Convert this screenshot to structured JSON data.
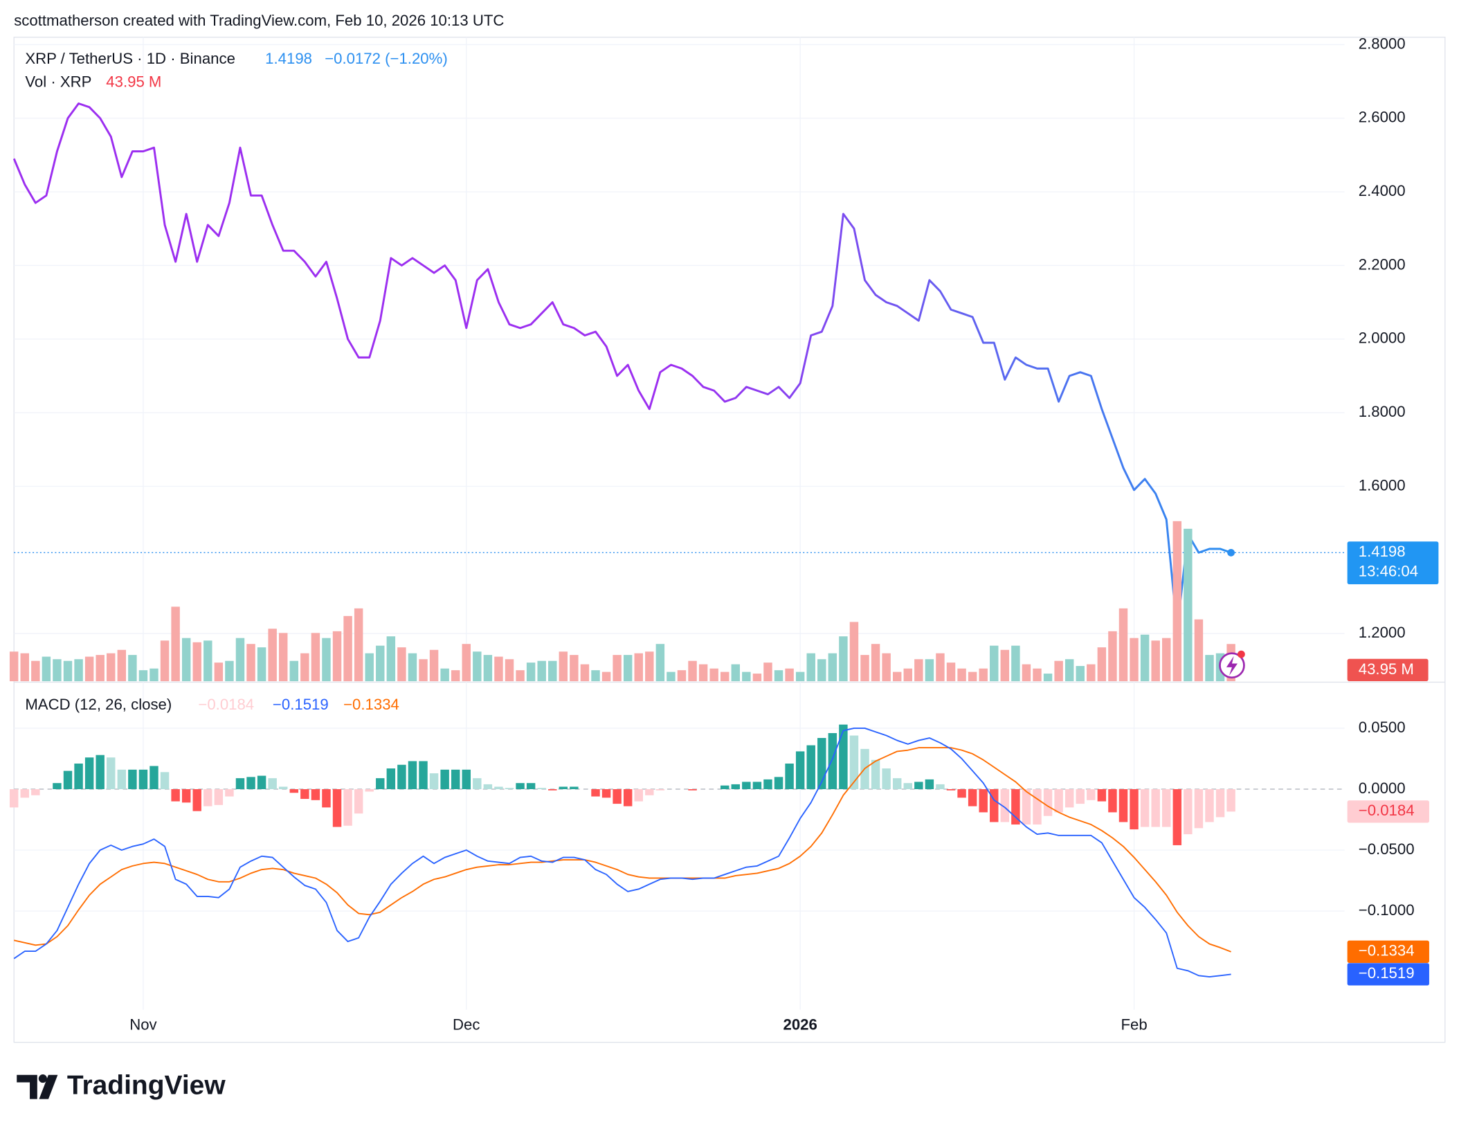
{
  "header": "scottmatherson created with TradingView.com, Feb 10, 2026 10:13 UTC",
  "footer_logo": "TradingView",
  "chart_data": [
    {
      "type": "line",
      "title": "XRP / TetherUS · 1D · Binance",
      "change_label": "−0.0172 (−1.20%)",
      "countdown": "13:46:04",
      "grid": true,
      "categories": [
        null,
        null,
        null,
        null,
        null,
        null,
        null,
        null,
        null,
        null,
        null,
        null,
        "Nov",
        null,
        null,
        null,
        null,
        null,
        null,
        null,
        null,
        null,
        null,
        null,
        null,
        null,
        null,
        null,
        null,
        null,
        null,
        null,
        null,
        null,
        null,
        null,
        null,
        null,
        null,
        null,
        null,
        null,
        "Dec",
        null,
        null,
        null,
        null,
        null,
        null,
        null,
        null,
        null,
        null,
        null,
        null,
        null,
        null,
        null,
        null,
        null,
        null,
        null,
        null,
        null,
        null,
        null,
        null,
        null,
        null,
        null,
        null,
        null,
        null,
        "2026",
        null,
        null,
        null,
        null,
        null,
        null,
        null,
        null,
        null,
        null,
        null,
        null,
        null,
        null,
        null,
        null,
        null,
        null,
        null,
        null,
        null,
        null,
        null,
        null,
        null,
        null,
        null,
        null,
        null,
        null,
        "Feb",
        null,
        null,
        null,
        null,
        null,
        null,
        null,
        null,
        null
      ],
      "series": [
        {
          "color": "#9c2ff0",
          "color_end": "#2b8ff0",
          "values": [
            2.49,
            2.42,
            2.37,
            2.39,
            2.51,
            2.6,
            2.64,
            2.63,
            2.6,
            2.55,
            2.44,
            2.51,
            2.51,
            2.52,
            2.31,
            2.21,
            2.34,
            2.21,
            2.31,
            2.28,
            2.37,
            2.52,
            2.39,
            2.39,
            2.31,
            2.24,
            2.24,
            2.21,
            2.17,
            2.21,
            2.11,
            2.0,
            1.95,
            1.95,
            2.05,
            2.22,
            2.2,
            2.22,
            2.2,
            2.18,
            2.2,
            2.16,
            2.03,
            2.16,
            2.19,
            2.1,
            2.04,
            2.03,
            2.04,
            2.07,
            2.1,
            2.04,
            2.03,
            2.01,
            2.02,
            1.98,
            1.9,
            1.93,
            1.86,
            1.81,
            1.91,
            1.93,
            1.92,
            1.9,
            1.87,
            1.86,
            1.83,
            1.84,
            1.87,
            1.86,
            1.85,
            1.87,
            1.84,
            1.88,
            2.01,
            2.02,
            2.09,
            2.34,
            2.3,
            2.16,
            2.12,
            2.1,
            2.09,
            2.07,
            2.05,
            2.16,
            2.13,
            2.08,
            2.07,
            2.06,
            1.99,
            1.99,
            1.89,
            1.95,
            1.93,
            1.92,
            1.92,
            1.83,
            1.9,
            1.91,
            1.9,
            1.81,
            1.73,
            1.65,
            1.59,
            1.62,
            1.58,
            1.51,
            1.21,
            1.47,
            1.42,
            1.43,
            1.43,
            1.4198
          ]
        }
      ],
      "ylim": [
        1.068,
        2.82
      ],
      "yticks": [
        {
          "value": 2.8,
          "label": "2.8000"
        },
        {
          "value": 2.6,
          "label": "2.6000"
        },
        {
          "value": 2.4,
          "label": "2.4000"
        },
        {
          "value": 2.2,
          "label": "2.2000"
        },
        {
          "value": 2.0,
          "label": "2.0000"
        },
        {
          "value": 1.8,
          "label": "1.8000"
        },
        {
          "value": 1.6,
          "label": "1.6000"
        },
        {
          "value": 1.2,
          "label": "1.2000"
        }
      ]
    },
    {
      "type": "bar",
      "title": "Vol · XRP",
      "last_value_label": "43.95 M",
      "series": [
        {
          "up_color": "#92d2cc",
          "down_color": "#f7a9a7",
          "values": [
            35,
            33,
            24,
            29,
            26,
            24,
            26,
            29,
            31,
            33,
            37,
            31,
            13,
            15,
            48,
            88,
            51,
            46,
            48,
            22,
            24,
            51,
            44,
            40,
            62,
            57,
            24,
            33,
            57,
            51,
            59,
            77,
            86,
            33,
            42,
            53,
            40,
            33,
            26,
            37,
            15,
            13,
            44,
            35,
            31,
            29,
            26,
            13,
            22,
            24,
            24,
            35,
            31,
            20,
            13,
            11,
            31,
            31,
            33,
            35,
            44,
            11,
            13,
            24,
            20,
            15,
            11,
            20,
            11,
            9,
            22,
            13,
            15,
            11,
            33,
            26,
            33,
            53,
            70,
            31,
            44,
            33,
            11,
            15,
            26,
            26,
            33,
            22,
            15,
            11,
            15,
            42,
            37,
            42,
            20,
            15,
            9,
            24,
            26,
            18,
            20,
            40,
            59,
            86,
            51,
            55,
            48,
            51,
            189,
            180,
            73,
            31,
            33,
            43.95
          ]
        }
      ]
    },
    {
      "type": "macd",
      "title": "MACD (12, 26, close)",
      "grid": true,
      "series": [
        {
          "colors": [
            "#26a69a",
            "#b2dfdb",
            "#ffcdd2",
            "#ff5252"
          ],
          "last_value_label": "−0.0184",
          "values": [
            -0.015,
            -0.007,
            -0.005,
            0,
            0.005,
            0.015,
            0.021,
            0.026,
            0.028,
            0.026,
            0.016,
            0.016,
            0.016,
            0.019,
            0.014,
            -0.01,
            -0.011,
            -0.018,
            -0.014,
            -0.013,
            -0.006,
            0.009,
            0.01,
            0.011,
            0.009,
            0.002,
            -0.003,
            -0.008,
            -0.009,
            -0.015,
            -0.031,
            -0.03,
            -0.02,
            -0.002,
            0.009,
            0.017,
            0.02,
            0.023,
            0.023,
            0.013,
            0.016,
            0.016,
            0.016,
            0.009,
            0.004,
            0.002,
            0.001,
            0.005,
            0.005,
            0.001,
            -0.001,
            0.002,
            0.002,
            0,
            -0.006,
            -0.007,
            -0.012,
            -0.014,
            -0.01,
            -0.005,
            -0.001,
            0,
            0,
            -0.001,
            0,
            0,
            0.003,
            0.004,
            0.006,
            0.006,
            0.008,
            0.01,
            0.021,
            0.031,
            0.036,
            0.042,
            0.046,
            0.053,
            0.044,
            0.033,
            0.024,
            0.017,
            0.009,
            0.005,
            0.006,
            0.008,
            0.004,
            -0.001,
            -0.007,
            -0.014,
            -0.019,
            -0.027,
            -0.027,
            -0.029,
            -0.029,
            -0.029,
            -0.022,
            -0.019,
            -0.015,
            -0.012,
            -0.009,
            -0.01,
            -0.019,
            -0.027,
            -0.033,
            -0.031,
            -0.031,
            -0.031,
            -0.046,
            -0.037,
            -0.032,
            -0.027,
            -0.023,
            -0.0184
          ]
        },
        {
          "color": "#2962ff",
          "last_value_label": "−0.1519",
          "values": [
            -0.139,
            -0.133,
            -0.133,
            -0.127,
            -0.116,
            -0.097,
            -0.078,
            -0.061,
            -0.05,
            -0.046,
            -0.05,
            -0.047,
            -0.045,
            -0.041,
            -0.047,
            -0.074,
            -0.078,
            -0.088,
            -0.088,
            -0.089,
            -0.082,
            -0.064,
            -0.059,
            -0.055,
            -0.056,
            -0.064,
            -0.072,
            -0.079,
            -0.082,
            -0.093,
            -0.116,
            -0.125,
            -0.122,
            -0.105,
            -0.092,
            -0.078,
            -0.069,
            -0.061,
            -0.055,
            -0.061,
            -0.056,
            -0.053,
            -0.05,
            -0.055,
            -0.059,
            -0.06,
            -0.061,
            -0.056,
            -0.055,
            -0.059,
            -0.06,
            -0.056,
            -0.056,
            -0.058,
            -0.066,
            -0.07,
            -0.078,
            -0.084,
            -0.082,
            -0.078,
            -0.074,
            -0.073,
            -0.073,
            -0.074,
            -0.073,
            -0.073,
            -0.07,
            -0.067,
            -0.064,
            -0.063,
            -0.059,
            -0.055,
            -0.04,
            -0.024,
            -0.011,
            0.006,
            0.025,
            0.048,
            0.05,
            0.05,
            0.047,
            0.044,
            0.04,
            0.037,
            0.04,
            0.042,
            0.038,
            0.033,
            0.025,
            0.015,
            0.005,
            -0.009,
            -0.015,
            -0.023,
            -0.031,
            -0.037,
            -0.036,
            -0.038,
            -0.038,
            -0.038,
            -0.038,
            -0.044,
            -0.059,
            -0.074,
            -0.089,
            -0.097,
            -0.107,
            -0.118,
            -0.147,
            -0.149,
            -0.153,
            -0.154,
            -0.153,
            -0.1519
          ]
        },
        {
          "color": "#ff6d00",
          "last_value_label": "−0.1334",
          "values": [
            -0.124,
            -0.126,
            -0.128,
            -0.127,
            -0.121,
            -0.112,
            -0.099,
            -0.087,
            -0.078,
            -0.072,
            -0.066,
            -0.063,
            -0.061,
            -0.06,
            -0.061,
            -0.064,
            -0.067,
            -0.07,
            -0.074,
            -0.076,
            -0.076,
            -0.073,
            -0.069,
            -0.066,
            -0.065,
            -0.066,
            -0.069,
            -0.071,
            -0.073,
            -0.078,
            -0.085,
            -0.095,
            -0.102,
            -0.103,
            -0.101,
            -0.095,
            -0.089,
            -0.084,
            -0.078,
            -0.074,
            -0.072,
            -0.069,
            -0.066,
            -0.064,
            -0.063,
            -0.062,
            -0.062,
            -0.061,
            -0.06,
            -0.06,
            -0.059,
            -0.058,
            -0.058,
            -0.058,
            -0.06,
            -0.063,
            -0.066,
            -0.07,
            -0.072,
            -0.073,
            -0.073,
            -0.073,
            -0.073,
            -0.073,
            -0.073,
            -0.073,
            -0.073,
            -0.071,
            -0.07,
            -0.069,
            -0.067,
            -0.065,
            -0.061,
            -0.055,
            -0.047,
            -0.036,
            -0.021,
            -0.005,
            0.006,
            0.017,
            0.023,
            0.027,
            0.031,
            0.032,
            0.034,
            0.034,
            0.034,
            0.034,
            0.032,
            0.029,
            0.024,
            0.018,
            0.012,
            0.006,
            -0.002,
            -0.008,
            -0.014,
            -0.019,
            -0.023,
            -0.026,
            -0.029,
            -0.034,
            -0.04,
            -0.047,
            -0.056,
            -0.066,
            -0.076,
            -0.087,
            -0.101,
            -0.112,
            -0.121,
            -0.127,
            -0.13,
            -0.1334
          ]
        }
      ],
      "ylim": [
        -0.181,
        0.0878
      ],
      "yticks": [
        {
          "value": 0.05,
          "label": "0.0500"
        },
        {
          "value": 0,
          "label": "0.0000"
        },
        {
          "value": -0.05,
          "label": "−0.0500"
        },
        {
          "value": -0.1,
          "label": "−0.1000"
        }
      ]
    }
  ]
}
